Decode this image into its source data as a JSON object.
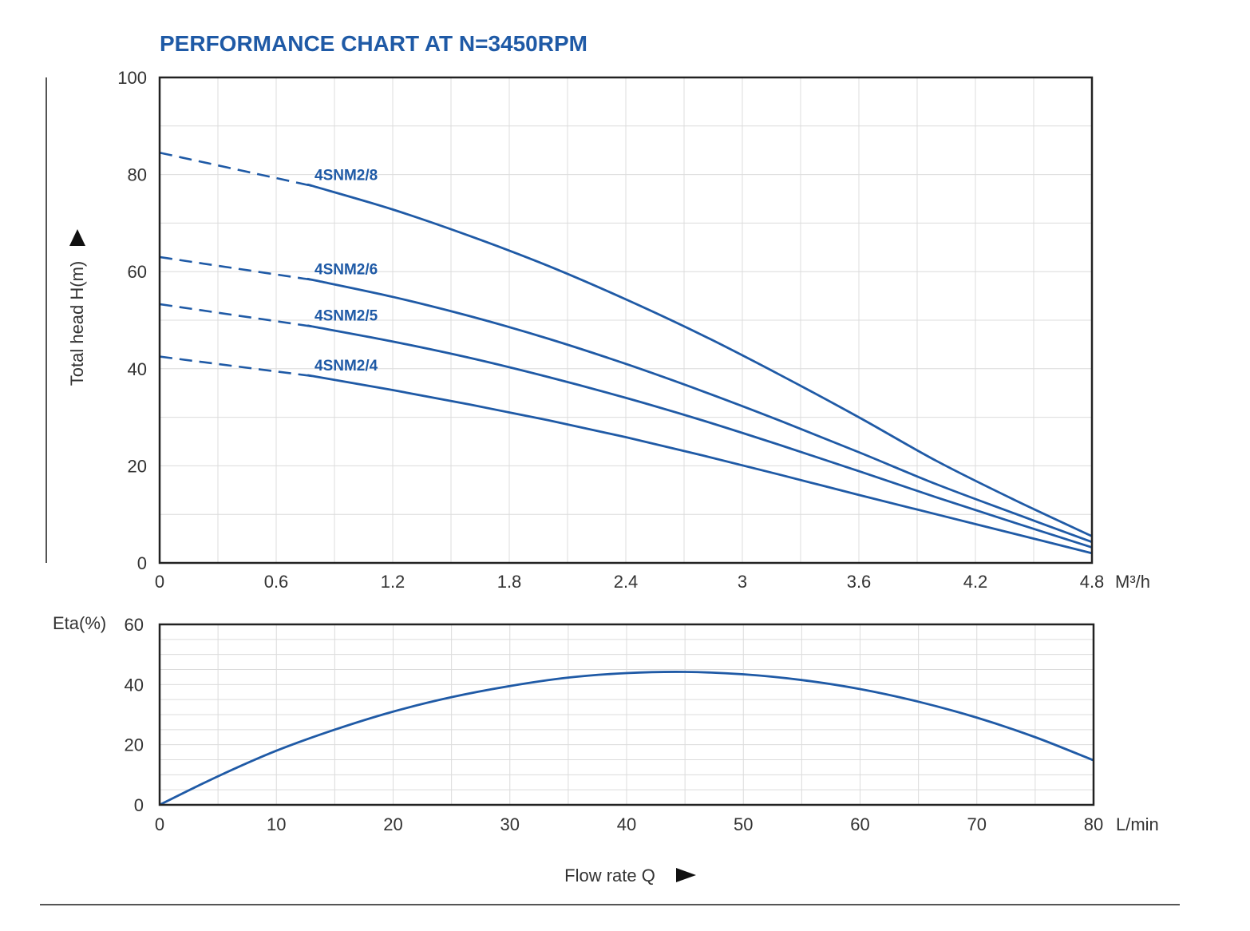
{
  "chart_data": [
    {
      "type": "line",
      "title": "PERFORMANCE CHART AT N=3450RPM",
      "ylabel": "Total head H(m)",
      "x_unit": "M³/h",
      "xlim": [
        0,
        4.8
      ],
      "ylim": [
        0,
        100
      ],
      "x_ticks": [
        "0",
        "0.6",
        "1.2",
        "1.8",
        "2.4",
        "3",
        "3.6",
        "4.2",
        "4.8"
      ],
      "y_ticks": [
        "0",
        "20",
        "40",
        "60",
        "80",
        "100"
      ],
      "grid": true,
      "dashed_until_x": 0.78,
      "x": [
        0,
        0.4,
        0.8,
        1.2,
        1.6,
        2.0,
        2.4,
        2.8,
        3.2,
        3.6,
        4.0,
        4.4,
        4.8
      ],
      "series": [
        {
          "name": "4SNM2/8",
          "values": [
            84.5,
            81.5,
            77.5,
            72.8,
            67.3,
            61.2,
            54.3,
            46.8,
            38.6,
            30.0,
            21.0,
            13.0,
            5.5
          ]
        },
        {
          "name": "4SNM2/6",
          "values": [
            63.0,
            61.0,
            58.2,
            54.8,
            50.8,
            46.2,
            41.0,
            35.3,
            29.2,
            22.8,
            16.2,
            10.2,
            4.3
          ]
        },
        {
          "name": "4SNM2/5",
          "values": [
            53.3,
            51.3,
            48.6,
            45.6,
            42.2,
            38.3,
            34.0,
            29.3,
            24.2,
            18.9,
            13.5,
            8.3,
            3.2
          ]
        },
        {
          "name": "4SNM2/4",
          "values": [
            42.5,
            40.8,
            38.4,
            35.6,
            32.6,
            29.4,
            25.9,
            22.1,
            18.1,
            14.0,
            10.0,
            6.0,
            2.0
          ]
        }
      ]
    },
    {
      "type": "line",
      "ylabel": "Eta(%)",
      "x_unit": "L/min",
      "xlabel": "Flow rate Q",
      "xlim": [
        0,
        80
      ],
      "ylim": [
        0,
        60
      ],
      "x_ticks": [
        "0",
        "10",
        "20",
        "30",
        "40",
        "50",
        "60",
        "70",
        "80"
      ],
      "y_ticks": [
        "0",
        "20",
        "40",
        "60"
      ],
      "grid": true,
      "x": [
        0,
        5,
        10,
        15,
        20,
        25,
        30,
        35,
        40,
        45,
        50,
        55,
        60,
        65,
        70,
        75,
        80
      ],
      "series": [
        {
          "values": [
            0,
            9.5,
            18.0,
            25.0,
            31.0,
            35.8,
            39.5,
            42.3,
            43.8,
            44.2,
            43.4,
            41.5,
            38.5,
            34.3,
            29.0,
            22.5,
            14.8
          ]
        }
      ]
    }
  ],
  "colors": {
    "curve": "#1f5aa6",
    "title": "#1f5aa6",
    "frame": "#222222",
    "grid": "#dcdcdc",
    "text": "#333333"
  },
  "icons": {
    "y_axis_arrow": "triangle-up-icon",
    "x_axis_arrow": "triangle-right-icon"
  }
}
